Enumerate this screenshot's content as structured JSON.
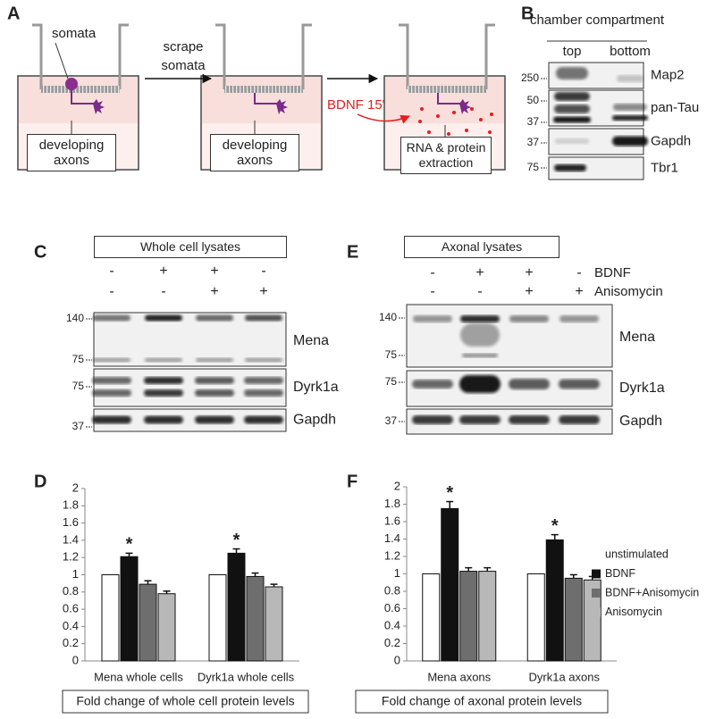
{
  "panel_labels": [
    "A",
    "B",
    "C",
    "D",
    "E",
    "F"
  ],
  "panel_a": {
    "somata": "somata",
    "step": "scrape somata",
    "axons_1": "developing axons",
    "axons_2": "developing axons",
    "treatment": "BDNF 15'",
    "extraction": "RNA & protein extraction"
  },
  "panel_b": {
    "header": "chamber compartment",
    "columns": [
      "top",
      "bottom"
    ],
    "markers": [
      "250",
      "50",
      "37",
      "37",
      "75"
    ],
    "bands": [
      "Map2",
      "pan-Tau",
      "Gapdh",
      "Tbr1"
    ]
  },
  "panel_c": {
    "title": "Whole cell lysates",
    "bdnf": [
      "-",
      "+",
      "+",
      "-"
    ],
    "anisomycin": [
      "-",
      "-",
      "+",
      "+"
    ],
    "markers": [
      "140",
      "75",
      "75",
      "37"
    ],
    "bands": [
      "Mena",
      "Dyrk1a",
      "Gapdh"
    ]
  },
  "panel_e": {
    "title": "Axonal lysates",
    "row_labels": [
      "BDNF",
      "Anisomycin"
    ],
    "bdnf": [
      "-",
      "+",
      "+",
      "-"
    ],
    "anisomycin": [
      "-",
      "-",
      "+",
      "+"
    ],
    "markers": [
      "140",
      "75",
      "75",
      "37"
    ],
    "bands": [
      "Mena",
      "Dyrk1a",
      "Gapdh"
    ]
  },
  "chart_data": [
    {
      "type": "bar",
      "caption": "Fold change of whole cell protein levels",
      "categories": [
        "Mena whole cells",
        "Dyrk1a whole cells"
      ],
      "ylim": [
        0,
        2
      ],
      "yticks": [
        0,
        0.2,
        0.4,
        0.6,
        0.8,
        1,
        1.2,
        1.4,
        1.6,
        1.8,
        2
      ],
      "legend": false,
      "series": [
        {
          "name": "unstimulated",
          "color": "#ffffff",
          "values": [
            1,
            1
          ]
        },
        {
          "name": "BDNF",
          "color": "#111111",
          "values": [
            1.21,
            1.25
          ],
          "errors": [
            0.04,
            0.05
          ],
          "markers": [
            "*",
            "*"
          ]
        },
        {
          "name": "BDNF+Anisomycin",
          "color": "#6e6e6e",
          "values": [
            0.89,
            0.98
          ],
          "errors": [
            0.04,
            0.04
          ]
        },
        {
          "name": "Anisomycin",
          "color": "#b8b8b8",
          "values": [
            0.78,
            0.86
          ],
          "errors": [
            0.03,
            0.03
          ]
        }
      ]
    },
    {
      "type": "bar",
      "caption": "Fold change of axonal protein levels",
      "categories": [
        "Mena axons",
        "Dyrk1a axons"
      ],
      "ylim": [
        0,
        2
      ],
      "yticks": [
        0,
        0.2,
        0.4,
        0.6,
        0.8,
        1,
        1.2,
        1.4,
        1.6,
        1.8,
        2
      ],
      "legend": "right",
      "series": [
        {
          "name": "unstimulated",
          "color": "#ffffff",
          "values": [
            1,
            1
          ]
        },
        {
          "name": "BDNF",
          "color": "#111111",
          "values": [
            1.75,
            1.39
          ],
          "errors": [
            0.08,
            0.06
          ],
          "markers": [
            "*",
            "*"
          ]
        },
        {
          "name": "BDNF+Anisomycin",
          "color": "#6e6e6e",
          "values": [
            1.03,
            0.95
          ],
          "errors": [
            0.04,
            0.04
          ]
        },
        {
          "name": "Anisomycin",
          "color": "#b8b8b8",
          "values": [
            1.03,
            0.93
          ],
          "errors": [
            0.04,
            0.04
          ]
        }
      ]
    }
  ]
}
